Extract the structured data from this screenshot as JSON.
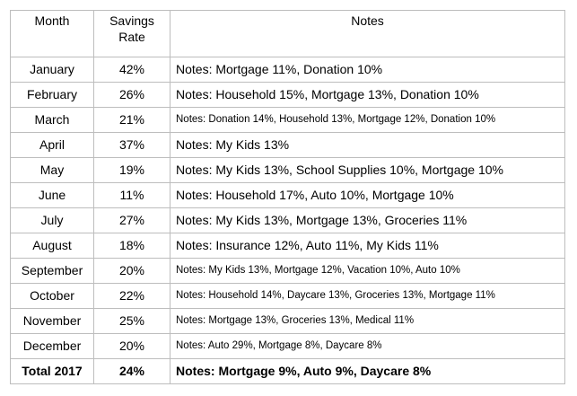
{
  "header": {
    "month": "Month",
    "rate_line1": "Savings",
    "rate_line2": "Rate",
    "notes": "Notes"
  },
  "rows": [
    {
      "month": "January",
      "rate": "42%",
      "notes": "Notes: Mortgage 11%, Donation 10%"
    },
    {
      "month": "February",
      "rate": "26%",
      "notes": "Notes: Household 15%, Mortgage 13%, Donation 10%"
    },
    {
      "month": "March",
      "rate": "21%",
      "notes": "Notes: Donation 14%, Household 13%, Mortgage 12%, Donation 10%"
    },
    {
      "month": "April",
      "rate": "37%",
      "notes": "Notes: My Kids 13%"
    },
    {
      "month": "May",
      "rate": "19%",
      "notes": "Notes: My Kids 13%, School Supplies 10%, Mortgage 10%"
    },
    {
      "month": "June",
      "rate": "11%",
      "notes": "Notes: Household 17%, Auto 10%, Mortgage 10%"
    },
    {
      "month": "July",
      "rate": "27%",
      "notes": "Notes: My Kids 13%, Mortgage 13%, Groceries 11%"
    },
    {
      "month": "August",
      "rate": "18%",
      "notes": "Notes: Insurance 12%, Auto 11%, My Kids 11%"
    },
    {
      "month": "September",
      "rate": "20%",
      "notes": "Notes: My Kids 13%, Mortgage 12%, Vacation 10%, Auto 10%"
    },
    {
      "month": "October",
      "rate": "22%",
      "notes": "Notes: Household 14%, Daycare 13%, Groceries 13%, Mortgage 11%"
    },
    {
      "month": "November",
      "rate": "25%",
      "notes": "Notes: Mortgage 13%, Groceries 13%, Medical 11%"
    },
    {
      "month": "December",
      "rate": "20%",
      "notes": "Notes: Auto 29%, Mortgage 8%, Daycare 8%"
    }
  ],
  "total": {
    "month": "Total 2017",
    "rate": "24%",
    "notes": "Notes: Mortgage 9%, Auto 9%, Daycare 8%"
  }
}
